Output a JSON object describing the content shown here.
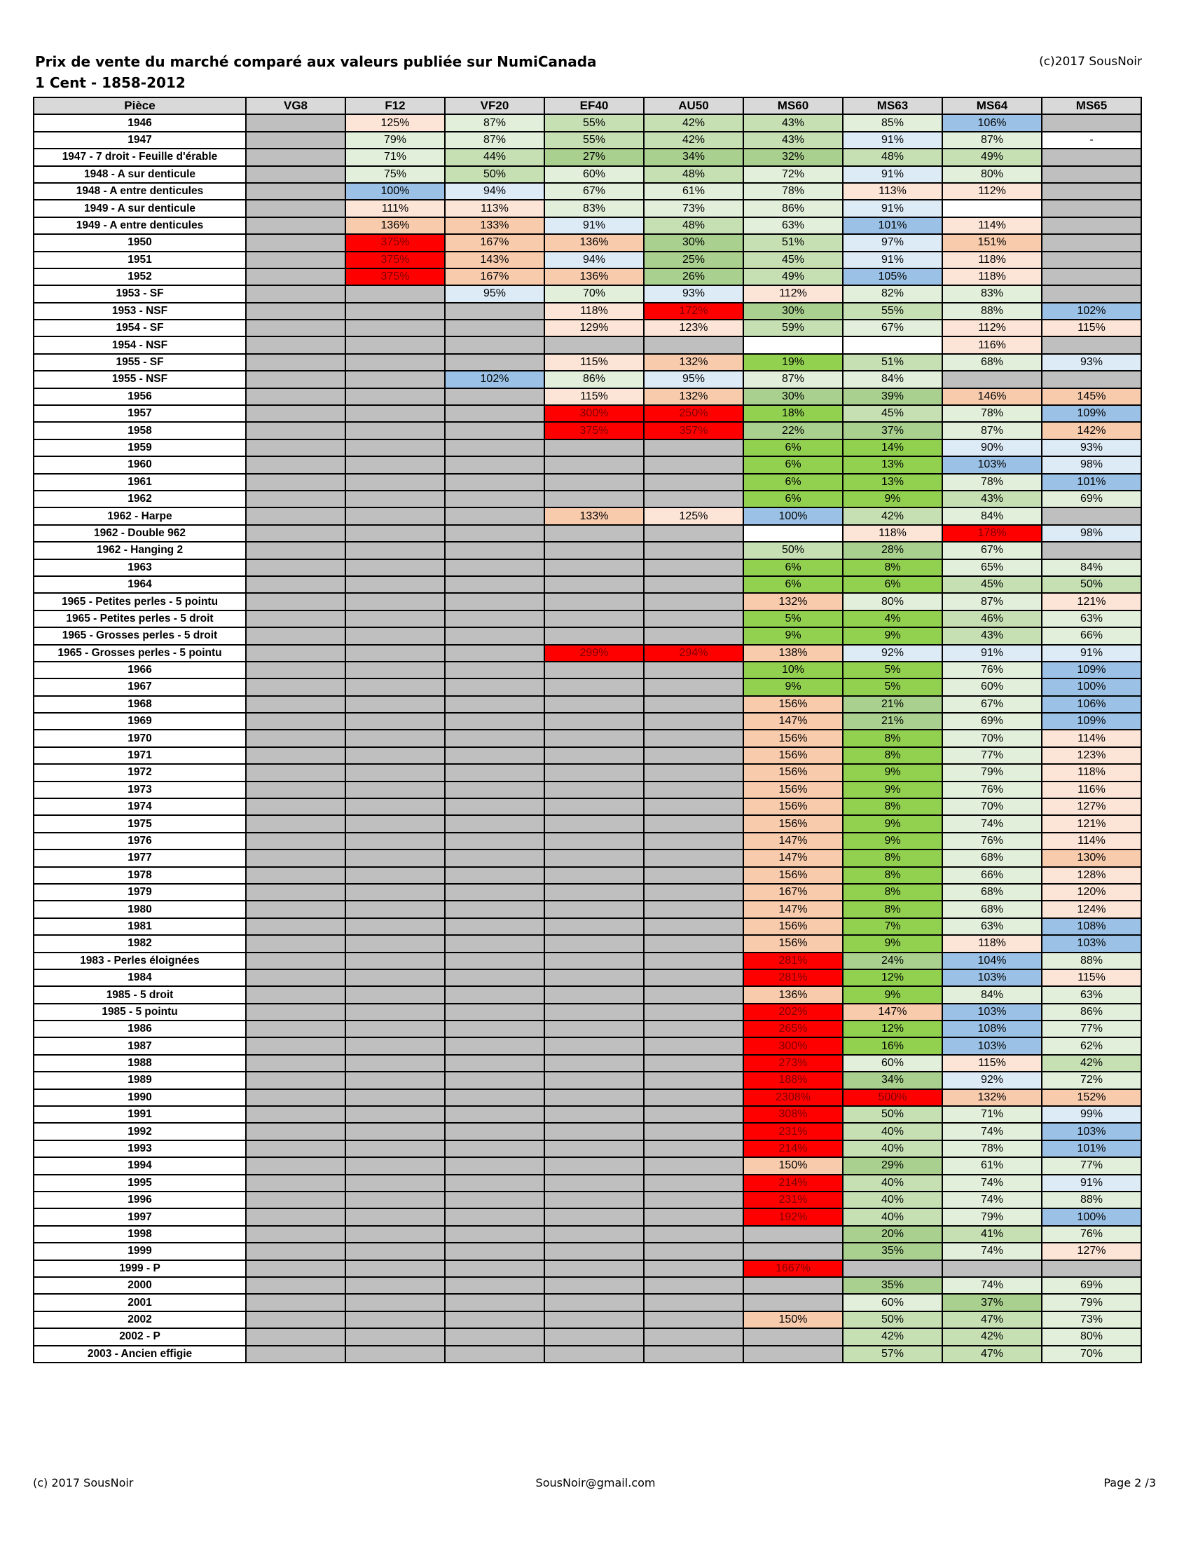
{
  "title": "Prix de vente du marché comparé aux valeurs publiée sur NumiCanada",
  "subtitle": "1 Cent - 1858-2012",
  "copyright_top": "(c)2017 SousNoir",
  "footer": {
    "left": "(c) 2017 SousNoir",
    "center": "SousNoir@gmail.com",
    "right": "Page 2 /3"
  },
  "colors": {
    "header_bg": "#d9d9d9",
    "not_available": "#bfbfbf",
    "white_empty": "#ffffff"
  },
  "columns": [
    "Pièce",
    "VG8",
    "F12",
    "VF20",
    "EF40",
    "AU50",
    "MS60",
    "MS63",
    "MS64",
    "MS65"
  ],
  "rows": [
    {
      "piece": "1946",
      "cells": [
        "",
        "125%",
        "87%",
        "55%",
        "42%",
        "43%",
        "85%",
        "106%",
        ""
      ]
    },
    {
      "piece": "1947",
      "cells": [
        "",
        "79%",
        "87%",
        "55%",
        "42%",
        "43%",
        "91%",
        "87%",
        "-"
      ]
    },
    {
      "piece": "1947 - 7 droit - Feuille d'érable",
      "cells": [
        "",
        "71%",
        "44%",
        "27%",
        "34%",
        "32%",
        "48%",
        "49%",
        ""
      ]
    },
    {
      "piece": "1948 - A sur denticule",
      "cells": [
        "",
        "75%",
        "50%",
        "60%",
        "48%",
        "72%",
        "91%",
        "80%",
        ""
      ]
    },
    {
      "piece": "1948 - A entre denticules",
      "cells": [
        "",
        "100%",
        "94%",
        "67%",
        "61%",
        "78%",
        "113%",
        "112%",
        ""
      ]
    },
    {
      "piece": "1949 - A sur denticule",
      "cells": [
        "",
        "111%",
        "113%",
        "83%",
        "73%",
        "86%",
        "91%",
        "",
        ""
      ]
    },
    {
      "piece": "1949 - A entre denticules",
      "cells": [
        "",
        "136%",
        "133%",
        "91%",
        "48%",
        "63%",
        "101%",
        "114%",
        ""
      ]
    },
    {
      "piece": "1950",
      "cells": [
        "",
        "375%",
        "167%",
        "136%",
        "30%",
        "51%",
        "97%",
        "151%",
        ""
      ]
    },
    {
      "piece": "1951",
      "cells": [
        "",
        "375%",
        "143%",
        "94%",
        "25%",
        "45%",
        "91%",
        "118%",
        ""
      ]
    },
    {
      "piece": "1952",
      "cells": [
        "",
        "375%",
        "167%",
        "136%",
        "26%",
        "49%",
        "105%",
        "118%",
        ""
      ]
    },
    {
      "piece": "1953 - SF",
      "cells": [
        "",
        "",
        "95%",
        "70%",
        "93%",
        "112%",
        "82%",
        "83%",
        ""
      ]
    },
    {
      "piece": "1953 - NSF",
      "cells": [
        "",
        "",
        "",
        "118%",
        "172%",
        "30%",
        "55%",
        "88%",
        "102%"
      ]
    },
    {
      "piece": "1954 - SF",
      "cells": [
        "",
        "",
        "",
        "129%",
        "123%",
        "59%",
        "67%",
        "112%",
        "115%"
      ]
    },
    {
      "piece": "1954 - NSF",
      "cells": [
        "",
        "",
        "",
        "",
        "",
        "",
        "",
        "116%",
        ""
      ]
    },
    {
      "piece": "1955 - SF",
      "cells": [
        "",
        "",
        "",
        "115%",
        "132%",
        "19%",
        "51%",
        "68%",
        "93%"
      ]
    },
    {
      "piece": "1955 - NSF",
      "cells": [
        "",
        "",
        "102%",
        "86%",
        "95%",
        "87%",
        "84%",
        "",
        ""
      ]
    },
    {
      "piece": "1956",
      "cells": [
        "",
        "",
        "",
        "115%",
        "132%",
        "30%",
        "39%",
        "146%",
        "145%"
      ]
    },
    {
      "piece": "1957",
      "cells": [
        "",
        "",
        "",
        "300%",
        "250%",
        "18%",
        "45%",
        "78%",
        "109%"
      ]
    },
    {
      "piece": "1958",
      "cells": [
        "",
        "",
        "",
        "375%",
        "357%",
        "22%",
        "37%",
        "87%",
        "142%"
      ]
    },
    {
      "piece": "1959",
      "cells": [
        "",
        "",
        "",
        "",
        "",
        "6%",
        "14%",
        "90%",
        "93%"
      ]
    },
    {
      "piece": "1960",
      "cells": [
        "",
        "",
        "",
        "",
        "",
        "6%",
        "13%",
        "103%",
        "98%"
      ]
    },
    {
      "piece": "1961",
      "cells": [
        "",
        "",
        "",
        "",
        "",
        "6%",
        "13%",
        "78%",
        "101%"
      ]
    },
    {
      "piece": "1962",
      "cells": [
        "",
        "",
        "",
        "",
        "",
        "6%",
        "9%",
        "43%",
        "69%"
      ]
    },
    {
      "piece": "1962 - Harpe",
      "cells": [
        "",
        "",
        "",
        "133%",
        "125%",
        "100%",
        "42%",
        "84%",
        ""
      ]
    },
    {
      "piece": "1962 - Double 962",
      "cells": [
        "",
        "",
        "",
        "",
        "",
        "",
        "118%",
        "178%",
        "98%"
      ]
    },
    {
      "piece": "1962 - Hanging 2",
      "cells": [
        "",
        "",
        "",
        "",
        "",
        "50%",
        "28%",
        "67%",
        ""
      ]
    },
    {
      "piece": "1963",
      "cells": [
        "",
        "",
        "",
        "",
        "",
        "6%",
        "8%",
        "65%",
        "84%"
      ]
    },
    {
      "piece": "1964",
      "cells": [
        "",
        "",
        "",
        "",
        "",
        "6%",
        "6%",
        "45%",
        "50%"
      ]
    },
    {
      "piece": "1965 - Petites perles - 5 pointu",
      "cells": [
        "",
        "",
        "",
        "",
        "",
        "132%",
        "80%",
        "87%",
        "121%"
      ]
    },
    {
      "piece": "1965 - Petites perles - 5 droit",
      "cells": [
        "",
        "",
        "",
        "",
        "",
        "5%",
        "4%",
        "46%",
        "63%"
      ]
    },
    {
      "piece": "1965 - Grosses perles - 5 droit",
      "cells": [
        "",
        "",
        "",
        "",
        "",
        "9%",
        "9%",
        "43%",
        "66%"
      ]
    },
    {
      "piece": "1965 - Grosses perles - 5 pointu",
      "cells": [
        "",
        "",
        "",
        "299%",
        "294%",
        "138%",
        "92%",
        "91%",
        "91%"
      ]
    },
    {
      "piece": "1966",
      "cells": [
        "",
        "",
        "",
        "",
        "",
        "10%",
        "5%",
        "76%",
        "109%"
      ]
    },
    {
      "piece": "1967",
      "cells": [
        "",
        "",
        "",
        "",
        "",
        "9%",
        "5%",
        "60%",
        "100%"
      ]
    },
    {
      "piece": "1968",
      "cells": [
        "",
        "",
        "",
        "",
        "",
        "156%",
        "21%",
        "67%",
        "106%"
      ]
    },
    {
      "piece": "1969",
      "cells": [
        "",
        "",
        "",
        "",
        "",
        "147%",
        "21%",
        "69%",
        "109%"
      ]
    },
    {
      "piece": "1970",
      "cells": [
        "",
        "",
        "",
        "",
        "",
        "156%",
        "8%",
        "70%",
        "114%"
      ]
    },
    {
      "piece": "1971",
      "cells": [
        "",
        "",
        "",
        "",
        "",
        "156%",
        "8%",
        "77%",
        "123%"
      ]
    },
    {
      "piece": "1972",
      "cells": [
        "",
        "",
        "",
        "",
        "",
        "156%",
        "9%",
        "79%",
        "118%"
      ]
    },
    {
      "piece": "1973",
      "cells": [
        "",
        "",
        "",
        "",
        "",
        "156%",
        "9%",
        "76%",
        "116%"
      ]
    },
    {
      "piece": "1974",
      "cells": [
        "",
        "",
        "",
        "",
        "",
        "156%",
        "8%",
        "70%",
        "127%"
      ]
    },
    {
      "piece": "1975",
      "cells": [
        "",
        "",
        "",
        "",
        "",
        "156%",
        "9%",
        "74%",
        "121%"
      ]
    },
    {
      "piece": "1976",
      "cells": [
        "",
        "",
        "",
        "",
        "",
        "147%",
        "9%",
        "76%",
        "114%"
      ]
    },
    {
      "piece": "1977",
      "cells": [
        "",
        "",
        "",
        "",
        "",
        "147%",
        "8%",
        "68%",
        "130%"
      ]
    },
    {
      "piece": "1978",
      "cells": [
        "",
        "",
        "",
        "",
        "",
        "156%",
        "8%",
        "66%",
        "128%"
      ]
    },
    {
      "piece": "1979",
      "cells": [
        "",
        "",
        "",
        "",
        "",
        "167%",
        "8%",
        "68%",
        "120%"
      ]
    },
    {
      "piece": "1980",
      "cells": [
        "",
        "",
        "",
        "",
        "",
        "147%",
        "8%",
        "68%",
        "124%"
      ]
    },
    {
      "piece": "1981",
      "cells": [
        "",
        "",
        "",
        "",
        "",
        "156%",
        "7%",
        "63%",
        "108%"
      ]
    },
    {
      "piece": "1982",
      "cells": [
        "",
        "",
        "",
        "",
        "",
        "156%",
        "9%",
        "118%",
        "103%"
      ]
    },
    {
      "piece": "1983 - Perles éloignées",
      "cells": [
        "",
        "",
        "",
        "",
        "",
        "281%",
        "24%",
        "104%",
        "88%"
      ]
    },
    {
      "piece": "1984",
      "cells": [
        "",
        "",
        "",
        "",
        "",
        "281%",
        "12%",
        "103%",
        "115%"
      ]
    },
    {
      "piece": "1985 - 5 droit",
      "cells": [
        "",
        "",
        "",
        "",
        "",
        "136%",
        "9%",
        "84%",
        "63%"
      ]
    },
    {
      "piece": "1985 - 5 pointu",
      "cells": [
        "",
        "",
        "",
        "",
        "",
        "202%",
        "147%",
        "103%",
        "86%"
      ]
    },
    {
      "piece": "1986",
      "cells": [
        "",
        "",
        "",
        "",
        "",
        "265%",
        "12%",
        "108%",
        "77%"
      ]
    },
    {
      "piece": "1987",
      "cells": [
        "",
        "",
        "",
        "",
        "",
        "300%",
        "16%",
        "103%",
        "62%"
      ]
    },
    {
      "piece": "1988",
      "cells": [
        "",
        "",
        "",
        "",
        "",
        "273%",
        "60%",
        "115%",
        "42%"
      ]
    },
    {
      "piece": "1989",
      "cells": [
        "",
        "",
        "",
        "",
        "",
        "188%",
        "34%",
        "92%",
        "72%"
      ]
    },
    {
      "piece": "1990",
      "cells": [
        "",
        "",
        "",
        "",
        "",
        "2308%",
        "500%",
        "132%",
        "152%"
      ]
    },
    {
      "piece": "1991",
      "cells": [
        "",
        "",
        "",
        "",
        "",
        "308%",
        "50%",
        "71%",
        "99%"
      ]
    },
    {
      "piece": "1992",
      "cells": [
        "",
        "",
        "",
        "",
        "",
        "231%",
        "40%",
        "74%",
        "103%"
      ]
    },
    {
      "piece": "1993",
      "cells": [
        "",
        "",
        "",
        "",
        "",
        "214%",
        "40%",
        "78%",
        "101%"
      ]
    },
    {
      "piece": "1994",
      "cells": [
        "",
        "",
        "",
        "",
        "",
        "150%",
        "29%",
        "61%",
        "77%"
      ]
    },
    {
      "piece": "1995",
      "cells": [
        "",
        "",
        "",
        "",
        "",
        "214%",
        "40%",
        "74%",
        "91%"
      ]
    },
    {
      "piece": "1996",
      "cells": [
        "",
        "",
        "",
        "",
        "",
        "231%",
        "40%",
        "74%",
        "88%"
      ]
    },
    {
      "piece": "1997",
      "cells": [
        "",
        "",
        "",
        "",
        "",
        "192%",
        "40%",
        "79%",
        "100%"
      ]
    },
    {
      "piece": "1998",
      "cells": [
        "",
        "",
        "",
        "",
        "",
        "",
        "20%",
        "41%",
        "76%"
      ]
    },
    {
      "piece": "1999",
      "cells": [
        "",
        "",
        "",
        "",
        "",
        "",
        "35%",
        "74%",
        "127%"
      ]
    },
    {
      "piece": "1999 - P",
      "cells": [
        "",
        "",
        "",
        "",
        "",
        "1667%",
        "",
        "",
        ""
      ]
    },
    {
      "piece": "2000",
      "cells": [
        "",
        "",
        "",
        "",
        "",
        "",
        "35%",
        "74%",
        "69%"
      ]
    },
    {
      "piece": "2001",
      "cells": [
        "",
        "",
        "",
        "",
        "",
        "",
        "60%",
        "37%",
        "79%"
      ]
    },
    {
      "piece": "2002",
      "cells": [
        "",
        "",
        "",
        "",
        "",
        "150%",
        "50%",
        "47%",
        "73%"
      ]
    },
    {
      "piece": "2002 - P",
      "cells": [
        "",
        "",
        "",
        "",
        "",
        "",
        "42%",
        "42%",
        "80%"
      ]
    },
    {
      "piece": "2003 - Ancien effigie",
      "cells": [
        "",
        "",
        "",
        "",
        "",
        "",
        "57%",
        "47%",
        "70%"
      ]
    }
  ]
}
